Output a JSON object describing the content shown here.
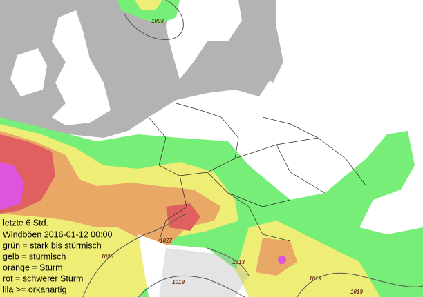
{
  "legend": {
    "lines": [
      "letzte 6 Std.",
      "Windböen 2016-01-12 00:00",
      "grün = stark bis stürmisch",
      "gelb = stürmisch",
      "orange = Sturm",
      "rot = schwerer Sturm",
      "lila >= orkanartig"
    ]
  },
  "isobars": {
    "labels": [
      1003,
      1026,
      1027,
      1013,
      1019,
      1019,
      1019
    ]
  }
}
